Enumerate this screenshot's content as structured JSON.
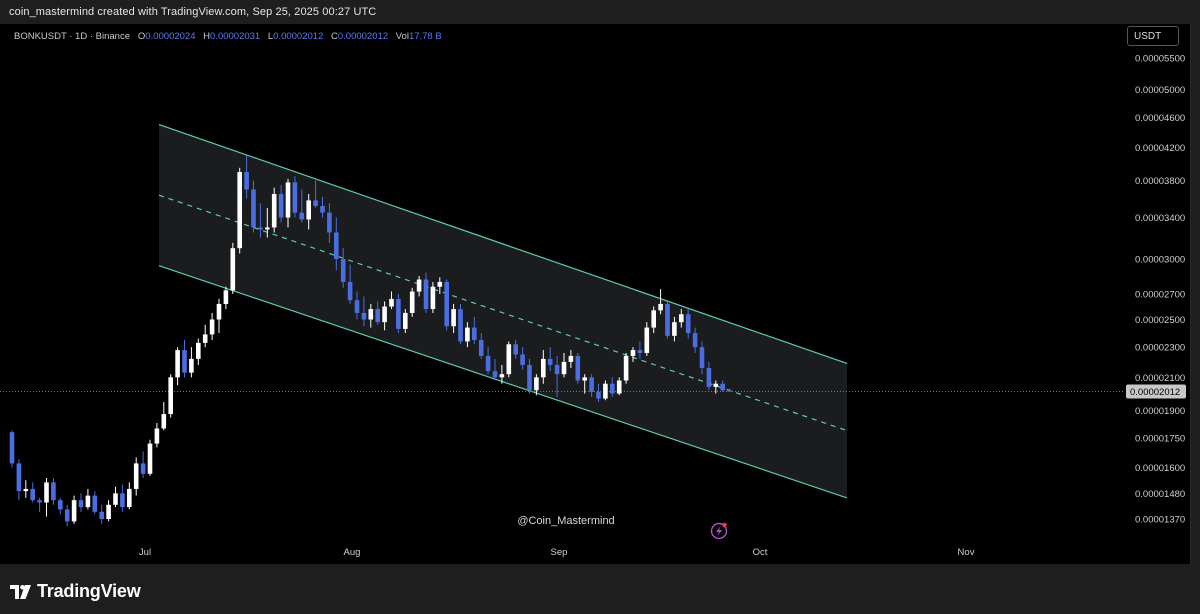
{
  "header": {
    "credit": "coin_mastermind created with TradingView.com, Sep 25, 2025 00:27 UTC"
  },
  "legend": {
    "symbol": "BONKUSDT · 1D · Binance",
    "open_label": "O",
    "open": "0.00002024",
    "high_label": "H",
    "high": "0.00002031",
    "low_label": "L",
    "low": "0.00002012",
    "close_label": "C",
    "close": "0.00002012",
    "vol_label": "Vol",
    "vol": "17.78 B"
  },
  "currency_button": "USDT",
  "watermark": "@Coin_Mastermind",
  "current_price_label": "0.00002012",
  "footer": {
    "brand": "TradingView"
  },
  "colors": {
    "up": "#ffffff",
    "down": "#4a6ee0",
    "channel": "#5fc9b3",
    "price_tag": "#c8c8c8",
    "channel_fill": "#1b1c1e"
  },
  "icons": [
    "lightning-icon",
    "tradingview-logo-icon"
  ],
  "chart_data": {
    "type": "candlestick",
    "title": "",
    "xlabel": "",
    "ylabel": "",
    "scale": "log",
    "ylim": [
      1.32e-05,
      5.8e-06
    ],
    "x_ticks": [
      "Jul",
      "Aug",
      "Sep",
      "Oct",
      "Nov"
    ],
    "y_ticks": [
      "0.00005500",
      "0.00005000",
      "0.00004600",
      "0.00004200",
      "0.00003800",
      "0.00003400",
      "0.00003000",
      "0.00002700",
      "0.00002500",
      "0.00002300",
      "0.00002100",
      "0.00001900",
      "0.00001750",
      "0.00001600",
      "0.00001480",
      "0.00001370"
    ],
    "current_price": 2.012e-05,
    "grid": false,
    "legend_placement": "top-left",
    "candles_ohlc": [
      [
        1.78,
        1.79,
        1.6,
        1.62
      ],
      [
        1.62,
        1.64,
        1.45,
        1.49
      ],
      [
        1.49,
        1.54,
        1.46,
        1.5
      ],
      [
        1.5,
        1.53,
        1.44,
        1.45
      ],
      [
        1.45,
        1.46,
        1.4,
        1.44
      ],
      [
        1.44,
        1.55,
        1.38,
        1.53
      ],
      [
        1.53,
        1.55,
        1.43,
        1.45
      ],
      [
        1.45,
        1.46,
        1.39,
        1.41
      ],
      [
        1.41,
        1.43,
        1.34,
        1.36
      ],
      [
        1.36,
        1.47,
        1.35,
        1.45
      ],
      [
        1.45,
        1.48,
        1.4,
        1.42
      ],
      [
        1.42,
        1.5,
        1.41,
        1.47
      ],
      [
        1.47,
        1.49,
        1.39,
        1.4
      ],
      [
        1.4,
        1.43,
        1.35,
        1.37
      ],
      [
        1.37,
        1.45,
        1.36,
        1.43
      ],
      [
        1.43,
        1.51,
        1.42,
        1.48
      ],
      [
        1.48,
        1.52,
        1.4,
        1.42
      ],
      [
        1.42,
        1.53,
        1.41,
        1.5
      ],
      [
        1.5,
        1.65,
        1.47,
        1.62
      ],
      [
        1.62,
        1.68,
        1.55,
        1.57
      ],
      [
        1.57,
        1.74,
        1.56,
        1.72
      ],
      [
        1.72,
        1.83,
        1.7,
        1.8
      ],
      [
        1.8,
        1.95,
        1.79,
        1.88
      ],
      [
        1.88,
        2.12,
        1.86,
        2.1
      ],
      [
        2.1,
        2.3,
        2.05,
        2.28
      ],
      [
        2.28,
        2.35,
        2.1,
        2.13
      ],
      [
        2.13,
        2.3,
        2.1,
        2.22
      ],
      [
        2.22,
        2.36,
        2.18,
        2.33
      ],
      [
        2.33,
        2.46,
        2.3,
        2.39
      ],
      [
        2.39,
        2.55,
        2.35,
        2.5
      ],
      [
        2.5,
        2.66,
        2.4,
        2.62
      ],
      [
        2.62,
        2.76,
        2.58,
        2.73
      ],
      [
        2.73,
        3.15,
        2.7,
        3.1
      ],
      [
        3.1,
        3.95,
        3.05,
        3.9
      ],
      [
        3.9,
        4.1,
        3.6,
        3.7
      ],
      [
        3.7,
        3.8,
        3.25,
        3.3
      ],
      [
        3.3,
        3.55,
        3.2,
        3.28
      ],
      [
        3.28,
        3.5,
        3.2,
        3.3
      ],
      [
        3.3,
        3.72,
        3.25,
        3.65
      ],
      [
        3.65,
        3.75,
        3.35,
        3.4
      ],
      [
        3.4,
        3.82,
        3.3,
        3.78
      ],
      [
        3.78,
        3.85,
        3.4,
        3.45
      ],
      [
        3.45,
        3.7,
        3.35,
        3.38
      ],
      [
        3.38,
        3.65,
        3.28,
        3.58
      ],
      [
        3.58,
        3.8,
        3.5,
        3.52
      ],
      [
        3.52,
        3.62,
        3.4,
        3.45
      ],
      [
        3.45,
        3.55,
        3.15,
        3.25
      ],
      [
        3.25,
        3.4,
        2.9,
        3.0
      ],
      [
        3.0,
        3.1,
        2.75,
        2.8
      ],
      [
        2.8,
        2.95,
        2.62,
        2.65
      ],
      [
        2.65,
        2.72,
        2.5,
        2.55
      ],
      [
        2.55,
        2.68,
        2.45,
        2.5
      ],
      [
        2.5,
        2.62,
        2.44,
        2.58
      ],
      [
        2.58,
        2.64,
        2.46,
        2.48
      ],
      [
        2.48,
        2.64,
        2.42,
        2.6
      ],
      [
        2.6,
        2.72,
        2.58,
        2.66
      ],
      [
        2.66,
        2.7,
        2.4,
        2.43
      ],
      [
        2.43,
        2.58,
        2.4,
        2.55
      ],
      [
        2.55,
        2.75,
        2.52,
        2.72
      ],
      [
        2.72,
        2.85,
        2.68,
        2.82
      ],
      [
        2.82,
        2.88,
        2.55,
        2.58
      ],
      [
        2.58,
        2.8,
        2.55,
        2.76
      ],
      [
        2.76,
        2.84,
        2.7,
        2.8
      ],
      [
        2.8,
        2.82,
        2.42,
        2.45
      ],
      [
        2.45,
        2.62,
        2.4,
        2.58
      ],
      [
        2.58,
        2.62,
        2.32,
        2.34
      ],
      [
        2.34,
        2.48,
        2.3,
        2.44
      ],
      [
        2.44,
        2.52,
        2.32,
        2.35
      ],
      [
        2.35,
        2.4,
        2.22,
        2.24
      ],
      [
        2.24,
        2.3,
        2.12,
        2.14
      ],
      [
        2.14,
        2.22,
        2.08,
        2.1
      ],
      [
        2.1,
        2.18,
        2.06,
        2.12
      ],
      [
        2.12,
        2.34,
        2.1,
        2.32
      ],
      [
        2.32,
        2.35,
        2.22,
        2.25
      ],
      [
        2.25,
        2.3,
        2.15,
        2.18
      ],
      [
        2.18,
        2.22,
        2.0,
        2.02
      ],
      [
        2.02,
        2.12,
        1.99,
        2.1
      ],
      [
        2.1,
        2.28,
        2.06,
        2.22
      ],
      [
        2.22,
        2.3,
        2.14,
        2.18
      ],
      [
        2.18,
        2.24,
        1.98,
        2.12
      ],
      [
        2.12,
        2.26,
        2.1,
        2.2
      ],
      [
        2.2,
        2.28,
        2.16,
        2.24
      ],
      [
        2.24,
        2.26,
        2.06,
        2.08
      ],
      [
        2.08,
        2.12,
        2.0,
        2.1
      ],
      [
        2.1,
        2.12,
        1.98,
        2.01
      ],
      [
        2.01,
        2.06,
        1.95,
        1.97
      ],
      [
        1.97,
        2.08,
        1.96,
        2.06
      ],
      [
        2.06,
        2.1,
        1.98,
        2.0
      ],
      [
        2.0,
        2.1,
        1.99,
        2.08
      ],
      [
        2.08,
        2.26,
        2.06,
        2.24
      ],
      [
        2.24,
        2.3,
        2.2,
        2.28
      ],
      [
        2.28,
        2.34,
        2.22,
        2.26
      ],
      [
        2.26,
        2.48,
        2.24,
        2.44
      ],
      [
        2.44,
        2.6,
        2.4,
        2.57
      ],
      [
        2.57,
        2.74,
        2.54,
        2.62
      ],
      [
        2.62,
        2.64,
        2.36,
        2.38
      ],
      [
        2.38,
        2.52,
        2.34,
        2.48
      ],
      [
        2.48,
        2.58,
        2.44,
        2.54
      ],
      [
        2.54,
        2.58,
        2.36,
        2.4
      ],
      [
        2.4,
        2.44,
        2.26,
        2.3
      ],
      [
        2.3,
        2.34,
        2.12,
        2.16
      ],
      [
        2.16,
        2.2,
        2.02,
        2.04
      ],
      [
        2.04,
        2.08,
        2.0,
        2.06
      ],
      [
        2.06,
        2.08,
        2.01,
        2.02
      ],
      [
        2.02,
        2.03,
        2.01,
        2.012
      ]
    ],
    "candles_unit": "1e-5 USDT",
    "channel": {
      "upper": [
        [
          4.5e-05,
          2.19e-05
        ]
      ],
      "lower": [
        [
          2.94e-05,
          1.46e-05
        ]
      ],
      "midline_style": "dashed"
    }
  }
}
